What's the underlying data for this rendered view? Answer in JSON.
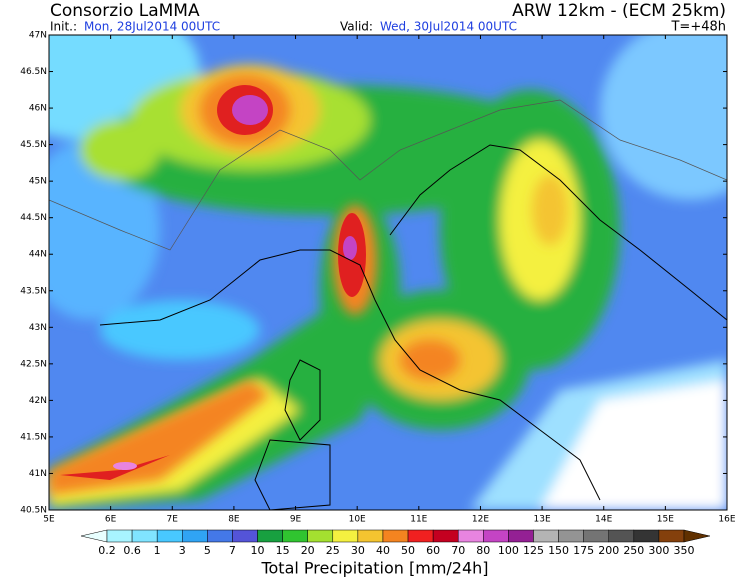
{
  "header": {
    "org": "Consorzio LaMMA",
    "model": "ARW 12km - (ECM 25km)",
    "init_label": "Init.:",
    "init_time": "Mon, 28Jul2014 00UTC",
    "valid_label": "Valid:",
    "valid_time": "Wed, 30Jul2014 00UTC",
    "lead": "T=+48h"
  },
  "map": {
    "lon_range": [
      5,
      16
    ],
    "lat_range": [
      40.5,
      47
    ],
    "lat_ticks": [
      {
        "value": 47,
        "label": "47N"
      },
      {
        "value": 46.5,
        "label": "46.5N"
      },
      {
        "value": 46,
        "label": "46N"
      },
      {
        "value": 45.5,
        "label": "45.5N"
      },
      {
        "value": 45,
        "label": "45N"
      },
      {
        "value": 44.5,
        "label": "44.5N"
      },
      {
        "value": 44,
        "label": "44N"
      },
      {
        "value": 43.5,
        "label": "43.5N"
      },
      {
        "value": 43,
        "label": "43N"
      },
      {
        "value": 42.5,
        "label": "42.5N"
      },
      {
        "value": 42,
        "label": "42N"
      },
      {
        "value": 41.5,
        "label": "41.5N"
      },
      {
        "value": 41,
        "label": "41N"
      },
      {
        "value": 40.5,
        "label": "40.5N"
      }
    ],
    "lon_ticks": [
      {
        "value": 5,
        "label": "5E"
      },
      {
        "value": 6,
        "label": "6E"
      },
      {
        "value": 7,
        "label": "7E"
      },
      {
        "value": 8,
        "label": "8E"
      },
      {
        "value": 9,
        "label": "9E"
      },
      {
        "value": 10,
        "label": "10E"
      },
      {
        "value": 11,
        "label": "11E"
      },
      {
        "value": 12,
        "label": "12E"
      },
      {
        "value": 13,
        "label": "13E"
      },
      {
        "value": 14,
        "label": "14E"
      },
      {
        "value": 15,
        "label": "15E"
      },
      {
        "value": 16,
        "label": "16E"
      }
    ]
  },
  "colorbar": {
    "labels": [
      0.2,
      0.6,
      1,
      3,
      5,
      7,
      10,
      15,
      20,
      25,
      30,
      40,
      50,
      60,
      70,
      80,
      100,
      125,
      150,
      175,
      200,
      250,
      300,
      350
    ],
    "colors": [
      "#e8ffff",
      "#a8f4ff",
      "#80e4ff",
      "#48c8ff",
      "#30a4f4",
      "#4478e8",
      "#5454d8",
      "#18a040",
      "#30c430",
      "#a4e030",
      "#f4f040",
      "#f4c430",
      "#f48420",
      "#f02020",
      "#c40020",
      "#e884e0",
      "#c444c4",
      "#942094",
      "#b4b4b4",
      "#949494",
      "#747474",
      "#545454",
      "#343434",
      "#84400c",
      "#603000"
    ],
    "title": "Total Precipitation [mm/24h]"
  }
}
